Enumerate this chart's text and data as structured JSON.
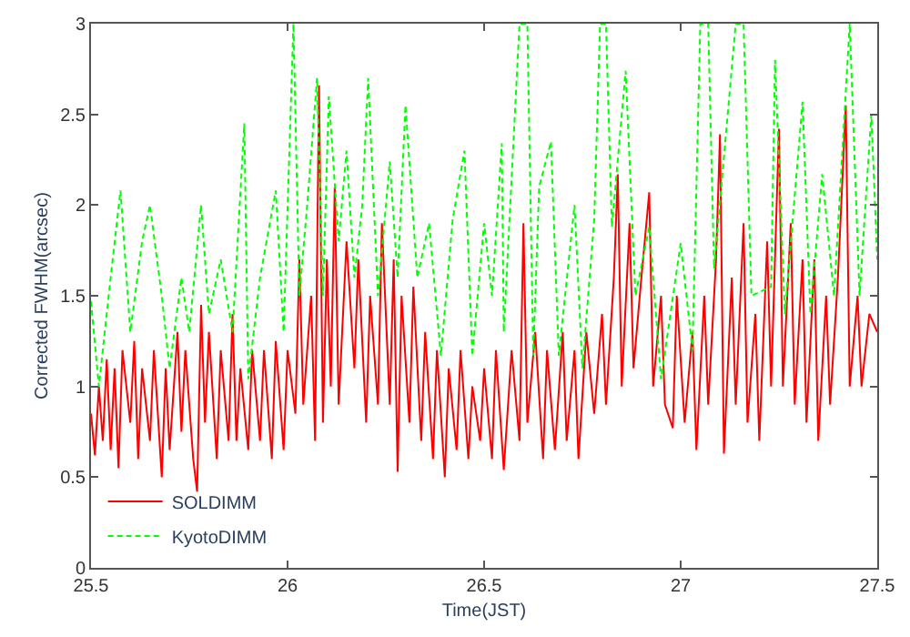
{
  "chart_data": {
    "type": "line",
    "xlabel": "Time(JST)",
    "ylabel": "Corrected FWHM(arcsec)",
    "xlim": [
      25.5,
      27.5
    ],
    "xticks": [
      25.5,
      26,
      26.5,
      27,
      27.5
    ],
    "ylim": [
      0,
      3
    ],
    "yticks": [
      0,
      0.5,
      1,
      1.5,
      2,
      2.5,
      3
    ],
    "legend": "bottom left",
    "marker": "none",
    "series": [
      {
        "name": "SOLDIMM",
        "color": "#ff0000",
        "line_style": "solid",
        "x": [
          25.5,
          25.51,
          25.52,
          25.53,
          25.54,
          25.55,
          25.56,
          25.57,
          25.58,
          25.6,
          25.61,
          25.62,
          25.63,
          25.65,
          25.66,
          25.68,
          25.69,
          25.7,
          25.72,
          25.73,
          25.74,
          25.76,
          25.77,
          25.78,
          25.79,
          25.8,
          25.82,
          25.83,
          25.85,
          25.86,
          25.87,
          25.88,
          25.9,
          25.91,
          25.93,
          25.94,
          25.96,
          25.97,
          25.99,
          26.0,
          26.02,
          26.03,
          26.04,
          26.06,
          26.07,
          26.08,
          26.09,
          26.1,
          26.11,
          26.12,
          26.13,
          26.15,
          26.17,
          26.18,
          26.2,
          26.21,
          26.23,
          26.24,
          26.26,
          26.27,
          26.28,
          26.29,
          26.31,
          26.32,
          26.34,
          26.35,
          26.37,
          26.38,
          26.4,
          26.41,
          26.43,
          26.44,
          26.46,
          26.47,
          26.49,
          26.5,
          26.52,
          26.53,
          26.55,
          26.57,
          26.59,
          26.6,
          26.61,
          26.63,
          26.65,
          26.66,
          26.68,
          26.7,
          26.71,
          26.73,
          26.74,
          26.76,
          26.78,
          26.8,
          26.81,
          26.83,
          26.84,
          26.85,
          26.87,
          26.88,
          26.9,
          26.92,
          26.93,
          26.95,
          26.96,
          26.98,
          26.99,
          27.01,
          27.03,
          27.04,
          27.06,
          27.07,
          27.09,
          27.1,
          27.11,
          27.13,
          27.14,
          27.16,
          27.17,
          27.19,
          27.2,
          27.22,
          27.23,
          27.25,
          27.26,
          27.28,
          27.29,
          27.31,
          27.32,
          27.34,
          27.35,
          27.37,
          27.38,
          27.4,
          27.42,
          27.43,
          27.45,
          27.46,
          27.48,
          27.5
        ],
        "values": [
          0.85,
          0.62,
          1.0,
          0.7,
          1.15,
          0.65,
          1.1,
          0.55,
          1.2,
          0.8,
          1.25,
          0.6,
          1.1,
          0.7,
          1.2,
          0.5,
          1.1,
          0.65,
          1.3,
          0.75,
          1.2,
          0.6,
          0.42,
          1.45,
          0.8,
          1.3,
          0.6,
          1.2,
          0.7,
          1.4,
          0.7,
          1.1,
          0.65,
          1.2,
          0.7,
          1.2,
          0.6,
          1.25,
          0.65,
          1.2,
          0.85,
          1.7,
          0.9,
          1.5,
          0.7,
          2.66,
          0.8,
          1.7,
          1.0,
          2.1,
          0.9,
          1.8,
          1.1,
          1.7,
          0.8,
          1.5,
          0.9,
          1.9,
          0.9,
          1.7,
          0.53,
          1.5,
          0.8,
          1.55,
          0.7,
          1.3,
          0.6,
          1.2,
          0.5,
          1.1,
          0.65,
          1.2,
          0.6,
          1.0,
          0.7,
          1.1,
          0.6,
          1.2,
          0.54,
          1.2,
          0.7,
          1.9,
          0.8,
          1.3,
          0.6,
          1.2,
          0.65,
          1.3,
          0.7,
          1.2,
          0.6,
          1.3,
          0.85,
          1.4,
          0.9,
          1.6,
          2.17,
          1.0,
          1.9,
          1.1,
          1.6,
          2.07,
          1.0,
          1.5,
          0.9,
          0.77,
          1.5,
          0.8,
          1.3,
          0.65,
          1.5,
          0.9,
          1.7,
          2.39,
          0.63,
          1.6,
          0.9,
          1.9,
          0.8,
          1.4,
          0.7,
          1.8,
          1.0,
          2.42,
          1.0,
          1.9,
          0.9,
          1.7,
          0.8,
          1.7,
          0.7,
          1.5,
          0.9,
          1.6,
          2.55,
          1.0,
          1.5,
          1.0,
          1.4,
          1.3
        ]
      },
      {
        "name": "KyotoDIMM",
        "color": "#00ff00",
        "line_style": "dashed",
        "x": [
          25.5,
          25.52,
          25.55,
          25.575,
          25.6,
          25.63,
          25.65,
          25.68,
          25.7,
          25.73,
          25.75,
          25.78,
          25.8,
          25.83,
          25.86,
          25.89,
          25.9,
          25.93,
          25.97,
          25.99,
          26.015,
          26.03,
          26.05,
          26.075,
          26.09,
          26.105,
          26.13,
          26.15,
          26.17,
          26.19,
          26.205,
          26.23,
          26.26,
          26.28,
          26.3,
          26.33,
          26.36,
          26.39,
          26.42,
          26.45,
          26.47,
          26.5,
          26.52,
          26.545,
          26.55,
          26.59,
          26.61,
          26.625,
          26.64,
          26.67,
          26.69,
          26.73,
          26.75,
          26.78,
          26.795,
          26.81,
          26.825,
          26.86,
          26.885,
          26.92,
          26.95,
          27.0,
          27.03,
          27.05,
          27.07,
          27.085,
          27.14,
          27.16,
          27.18,
          27.23,
          27.24,
          27.265,
          27.31,
          27.33,
          27.36,
          27.39,
          27.43,
          27.455,
          27.485,
          27.5
        ],
        "values": [
          1.47,
          1.0,
          1.6,
          2.08,
          1.3,
          1.8,
          2.0,
          1.5,
          1.1,
          1.6,
          1.3,
          2.0,
          1.4,
          1.7,
          1.3,
          2.45,
          1.04,
          1.6,
          2.08,
          1.3,
          3.0,
          1.5,
          2.0,
          2.7,
          1.5,
          2.6,
          1.8,
          2.3,
          1.6,
          2.0,
          2.7,
          1.5,
          2.24,
          1.6,
          2.55,
          1.6,
          1.9,
          1.17,
          1.92,
          2.3,
          1.17,
          1.9,
          1.5,
          2.34,
          1.3,
          3.0,
          3.0,
          1.17,
          2.1,
          2.35,
          1.17,
          2.0,
          1.1,
          1.92,
          3.0,
          3.0,
          1.88,
          2.74,
          1.5,
          1.88,
          1.04,
          1.79,
          1.2,
          3.0,
          3.0,
          1.65,
          3.0,
          3.0,
          1.5,
          1.55,
          2.8,
          1.4,
          2.57,
          1.4,
          2.17,
          1.5,
          3.0,
          1.5,
          2.5,
          1.7
        ]
      }
    ]
  }
}
